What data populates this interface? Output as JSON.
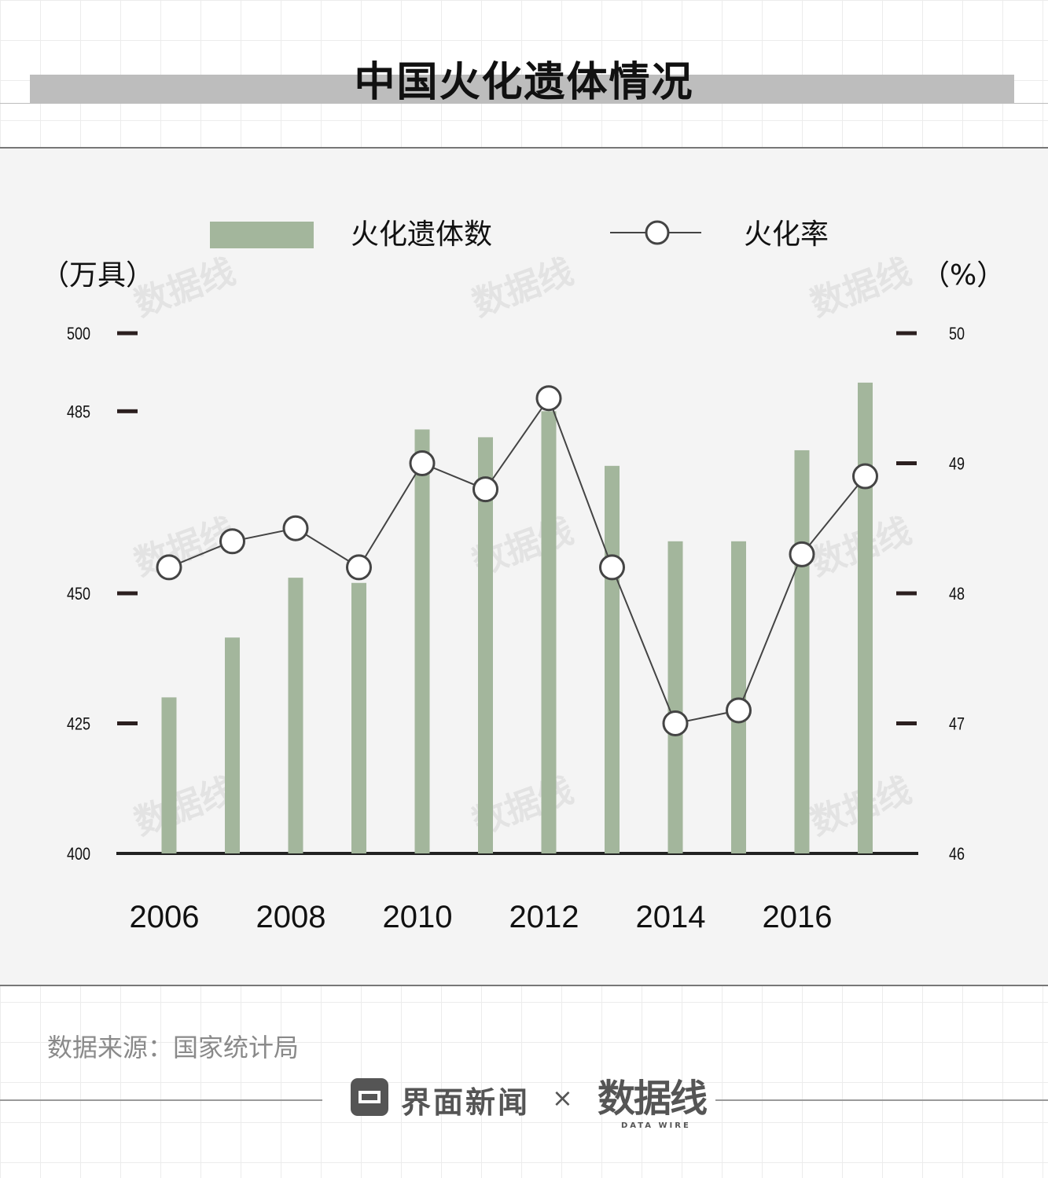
{
  "title": "中国火化遗体情况",
  "source": "数据来源：国家统计局",
  "footer": {
    "brand": "界面新闻",
    "separator": "×",
    "logo_text": "数据线",
    "logo_subtext": "DATA WIRE",
    "brand_icon": "jiemian-logo-icon"
  },
  "watermark": "数据线",
  "colors": {
    "bar": "#a3b69c",
    "line": "#444444",
    "marker_fill": "#ffffff",
    "marker_stroke": "#444444",
    "axis": "#222222",
    "tick": "#2b1f1f"
  },
  "chart_data": {
    "type": "bar",
    "title": "中国火化遗体情况",
    "legend_placement": "top-center",
    "grid": false,
    "x_tick_labels": [
      "2006",
      "2008",
      "2010",
      "2012",
      "2014",
      "2016"
    ],
    "categories": [
      "2006",
      "2007",
      "2008",
      "2009",
      "2010",
      "2011",
      "2012",
      "2013",
      "2014",
      "2015",
      "2016",
      "2017"
    ],
    "left_axis": {
      "unit": "（万具）",
      "ticks": [
        {
          "value": 400,
          "label": "400"
        },
        {
          "value": 425,
          "label": "425"
        },
        {
          "value": 450,
          "label": "450"
        },
        {
          "value": 485,
          "label": "485"
        },
        {
          "value": 500,
          "label": "500"
        }
      ]
    },
    "right_axis": {
      "unit": "（%）",
      "ticks": [
        {
          "value": 46,
          "label": "46"
        },
        {
          "value": 47,
          "label": "47"
        },
        {
          "value": 48,
          "label": "48"
        },
        {
          "value": 49,
          "label": "49"
        },
        {
          "value": 50,
          "label": "50"
        }
      ]
    },
    "series": [
      {
        "name": "火化遗体数",
        "type": "bar",
        "axis": "left",
        "values": [
          430,
          441.5,
          453,
          452,
          481.5,
          480,
          485,
          474.5,
          460,
          460,
          477.5,
          490.5
        ]
      },
      {
        "name": "火化率",
        "type": "line",
        "axis": "right",
        "values": [
          48.2,
          48.4,
          48.5,
          48.2,
          49.0,
          48.8,
          49.5,
          48.2,
          47.0,
          47.1,
          48.3,
          48.9
        ]
      }
    ]
  }
}
